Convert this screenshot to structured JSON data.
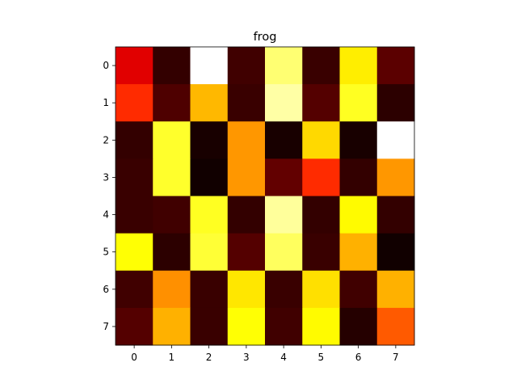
{
  "chart_data": {
    "type": "heatmap",
    "title": "frog",
    "xlabel": "",
    "ylabel": "",
    "colormap": "hot",
    "x_ticks": [
      "0",
      "1",
      "2",
      "3",
      "4",
      "5",
      "6",
      "7"
    ],
    "y_ticks": [
      "0",
      "1",
      "2",
      "3",
      "4",
      "5",
      "6",
      "7"
    ],
    "vmin": 0,
    "vmax": 1,
    "values": [
      [
        0.32,
        0.06,
        1.0,
        0.08,
        0.86,
        0.07,
        0.72,
        0.12
      ],
      [
        0.43,
        0.1,
        0.64,
        0.07,
        0.91,
        0.11,
        0.78,
        0.05
      ],
      [
        0.06,
        0.79,
        0.02,
        0.59,
        0.02,
        0.69,
        0.02,
        1.0
      ],
      [
        0.07,
        0.79,
        0.01,
        0.59,
        0.13,
        0.43,
        0.06,
        0.59
      ],
      [
        0.07,
        0.08,
        0.78,
        0.06,
        0.9,
        0.06,
        0.74,
        0.06
      ],
      [
        0.75,
        0.05,
        0.8,
        0.11,
        0.84,
        0.07,
        0.63,
        0.01
      ],
      [
        0.08,
        0.58,
        0.07,
        0.71,
        0.07,
        0.7,
        0.08,
        0.63
      ],
      [
        0.11,
        0.63,
        0.07,
        0.75,
        0.08,
        0.74,
        0.04,
        0.5
      ]
    ]
  }
}
